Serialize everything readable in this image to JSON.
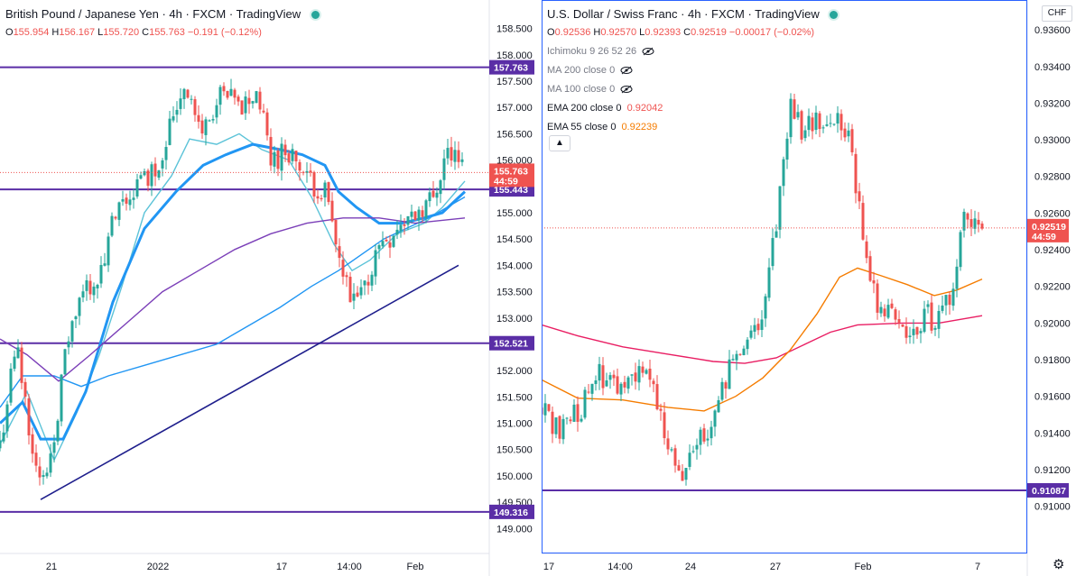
{
  "colors": {
    "up": "#26a69a",
    "down": "#ef5350",
    "level": "#5a2ea6",
    "trend": "#1e1e8c",
    "ma_blue": "#2196f3",
    "ma_blue_light": "#5cc3d8",
    "ma_purple": "#7b3fb8",
    "ema200": "#e91e63",
    "ema55": "#f57c00",
    "last_price": "#ef5350",
    "panel_border": "#2962ff"
  },
  "left": {
    "title": "British Pound / Japanese Yen · 4h · FXCM · TradingView",
    "ohlc": {
      "o": "155.954",
      "h": "156.167",
      "l": "155.720",
      "c": "155.763",
      "chg": "−0.191 (−0.12%)"
    },
    "ohlc_labels": {
      "o": "O",
      "h": "H",
      "l": "L",
      "c": "C"
    },
    "time_labels": [
      "21",
      "2022",
      "17",
      "14:00",
      "Feb"
    ],
    "price_tag": {
      "value": "155.763",
      "countdown": "44:59"
    },
    "level_tags": [
      "157.763",
      "155.443",
      "152.521",
      "149.316"
    ]
  },
  "right": {
    "title": "U.S. Dollar / Swiss Franc · 4h · FXCM · TradingView",
    "ohlc": {
      "o": "0.92536",
      "h": "0.92570",
      "l": "0.92393",
      "c": "0.92519",
      "chg": "−0.00017 (−0.02%)"
    },
    "ohlc_labels": {
      "o": "O",
      "h": "H",
      "l": "L",
      "c": "C"
    },
    "indicators": [
      {
        "label": "Ichimoku 9 26 52 26",
        "hidden": true,
        "value": ""
      },
      {
        "label": "MA 200 close 0",
        "hidden": true,
        "value": ""
      },
      {
        "label": "MA 100 close 0",
        "hidden": true,
        "value": ""
      },
      {
        "label": "EMA 200 close 0",
        "hidden": false,
        "value": "0.92042"
      },
      {
        "label": "EMA 55 close 0",
        "hidden": false,
        "value": "0.92239"
      }
    ],
    "currency": "CHF",
    "collapse_icon": "chevron-up-icon",
    "settings_icon": "gear-icon",
    "time_labels": [
      "17",
      "14:00",
      "24",
      "27",
      "Feb",
      "7"
    ],
    "price_tag": {
      "value": "0.92519",
      "countdown": "44:59"
    },
    "level_tags": [
      "0.91087"
    ]
  },
  "chart_data": [
    {
      "type": "candlestick",
      "title": "British Pound / Japanese Yen · 4h · FXCM · TradingView",
      "symbol": "GBPJPY",
      "timeframe": "4h",
      "ylim": [
        148.8,
        158.75
      ],
      "y_ticks": [
        "158.500",
        "158.000",
        "157.500",
        "157.000",
        "156.500",
        "156.000",
        "155.500",
        "155.000",
        "154.500",
        "154.000",
        "153.500",
        "153.000",
        "152.500",
        "152.000",
        "151.500",
        "151.000",
        "150.500",
        "150.000",
        "149.500",
        "149.000"
      ],
      "x_ticks": [
        "21",
        "2022",
        "17",
        "14:00",
        "Feb"
      ],
      "grid": false,
      "last_price": 155.763,
      "horizontal_levels": [
        157.763,
        155.443,
        152.521,
        149.316
      ],
      "trendline": {
        "from": [
          45,
          149.55
        ],
        "to": [
          508,
          154.0
        ]
      },
      "moving_averages": [
        {
          "color": "#5cc3d8",
          "points": [
            [
              0,
              150.6
            ],
            [
              30,
              151.6
            ],
            [
              60,
              150.3
            ],
            [
              85,
              151.2
            ],
            [
              110,
              152.3
            ],
            [
              135,
              153.6
            ],
            [
              160,
              155.0
            ],
            [
              190,
              155.7
            ],
            [
              210,
              156.4
            ],
            [
              240,
              156.3
            ],
            [
              265,
              156.5
            ],
            [
              290,
              156.2
            ],
            [
              320,
              156.0
            ],
            [
              345,
              155.3
            ],
            [
              370,
              154.4
            ],
            [
              390,
              153.9
            ],
            [
              410,
              154.1
            ],
            [
              440,
              154.6
            ],
            [
              470,
              154.8
            ],
            [
              490,
              155.1
            ],
            [
              515,
              155.6
            ]
          ]
        },
        {
          "color": "#2196f3",
          "thick": true,
          "points": [
            [
              0,
              151.0
            ],
            [
              25,
              151.4
            ],
            [
              45,
              150.7
            ],
            [
              70,
              150.7
            ],
            [
              95,
              151.6
            ],
            [
              125,
              153.3
            ],
            [
              160,
              154.7
            ],
            [
              195,
              155.4
            ],
            [
              225,
              155.9
            ],
            [
              250,
              156.1
            ],
            [
              280,
              156.3
            ],
            [
              310,
              156.2
            ],
            [
              335,
              156.1
            ],
            [
              360,
              155.9
            ],
            [
              375,
              155.4
            ],
            [
              395,
              155.1
            ],
            [
              420,
              154.8
            ],
            [
              445,
              154.8
            ],
            [
              470,
              154.9
            ],
            [
              490,
              155.0
            ],
            [
              515,
              155.4
            ]
          ]
        },
        {
          "color": "#2196f3",
          "points": [
            [
              0,
              151.3
            ],
            [
              25,
              151.9
            ],
            [
              60,
              151.9
            ],
            [
              90,
              151.7
            ],
            [
              120,
              151.9
            ],
            [
              160,
              152.1
            ],
            [
              200,
              152.3
            ],
            [
              240,
              152.5
            ],
            [
              280,
              152.9
            ],
            [
              310,
              153.2
            ],
            [
              345,
              153.6
            ],
            [
              375,
              153.9
            ],
            [
              400,
              154.2
            ],
            [
              425,
              154.5
            ],
            [
              450,
              154.7
            ],
            [
              475,
              154.9
            ],
            [
              515,
              155.3
            ]
          ]
        },
        {
          "color": "#7b3fb8",
          "points": [
            [
              0,
              152.6
            ],
            [
              30,
              152.3
            ],
            [
              65,
              151.8
            ],
            [
              100,
              152.3
            ],
            [
              140,
              152.9
            ],
            [
              180,
              153.5
            ],
            [
              220,
              153.9
            ],
            [
              260,
              154.3
            ],
            [
              300,
              154.6
            ],
            [
              340,
              154.8
            ],
            [
              380,
              154.9
            ],
            [
              420,
              154.9
            ],
            [
              460,
              154.8
            ],
            [
              515,
              154.9
            ]
          ]
        }
      ]
    },
    {
      "type": "candlestick",
      "title": "U.S. Dollar / Swiss Franc · 4h · FXCM · TradingView",
      "symbol": "USDCHF",
      "timeframe": "4h",
      "ylim": [
        0.9089,
        0.9363
      ],
      "y_ticks": [
        "0.93600",
        "0.93400",
        "0.93200",
        "0.93000",
        "0.92800",
        "0.92600",
        "0.92400",
        "0.92200",
        "0.92000",
        "0.91800",
        "0.91600",
        "0.91400",
        "0.91200",
        "0.91000"
      ],
      "x_ticks": [
        "17",
        "14:00",
        "24",
        "27",
        "Feb",
        "7"
      ],
      "grid": false,
      "last_price": 0.92519,
      "horizontal_levels": [
        0.91087
      ],
      "ema200": 0.92042,
      "ema55": 0.92239,
      "moving_averages": [
        {
          "name": "EMA 200 close 0",
          "color": "#e91e63",
          "points": [
            [
              0,
              0.9199
            ],
            [
              40,
              0.9193
            ],
            [
              90,
              0.9187
            ],
            [
              140,
              0.9183
            ],
            [
              190,
              0.9179
            ],
            [
              225,
              0.9178
            ],
            [
              260,
              0.9181
            ],
            [
              290,
              0.9188
            ],
            [
              320,
              0.9195
            ],
            [
              350,
              0.9199
            ],
            [
              400,
              0.92
            ],
            [
              440,
              0.92
            ],
            [
              488,
              0.9204
            ]
          ]
        },
        {
          "name": "EMA 55 close 0",
          "color": "#f57c00",
          "points": [
            [
              0,
              0.9169
            ],
            [
              40,
              0.9159
            ],
            [
              90,
              0.9158
            ],
            [
              140,
              0.9154
            ],
            [
              180,
              0.9152
            ],
            [
              215,
              0.916
            ],
            [
              245,
              0.917
            ],
            [
              275,
              0.9185
            ],
            [
              305,
              0.9205
            ],
            [
              330,
              0.9225
            ],
            [
              350,
              0.923
            ],
            [
              375,
              0.9226
            ],
            [
              405,
              0.9221
            ],
            [
              435,
              0.9215
            ],
            [
              460,
              0.9218
            ],
            [
              488,
              0.9224
            ]
          ]
        }
      ]
    }
  ]
}
